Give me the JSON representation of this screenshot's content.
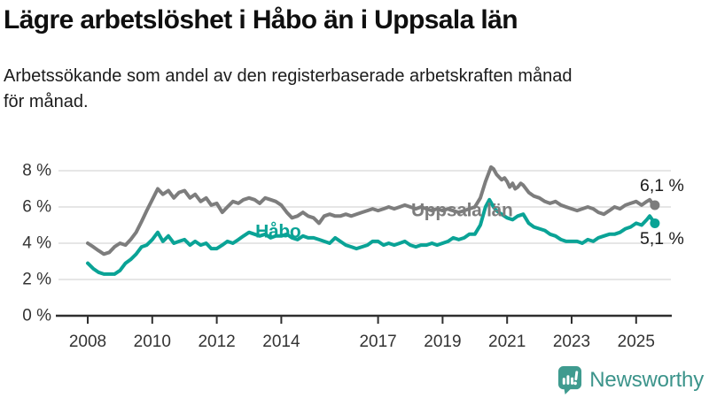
{
  "title": "Lägre arbetslöshet i Håbo än i Uppsala län",
  "subtitle_lines": [
    "Arbetssökande som andel av den registerbaserade arbetskraften månad",
    "för månad."
  ],
  "logo": {
    "text": "Newsworthy",
    "icon": "speech-bubble-bar-chart-exclamation",
    "color": "#3f9b8f",
    "text_color": "#3c948b"
  },
  "colors": {
    "uppsala_line": "#7d7d7d",
    "habo_line": "#0aa396",
    "grid": "#d8d8d8",
    "axis": "#2e2e2e",
    "tick_text": "#333333",
    "value_text": "#1a1a1a"
  },
  "chart_data": {
    "type": "line",
    "title": "",
    "xlabel": "",
    "ylabel": "",
    "x_unit": "year (decimal, monthly series)",
    "y_unit": "percent",
    "xlim": [
      2007.0,
      2026.2
    ],
    "ylim": [
      0,
      8.6
    ],
    "grid": "horizontal",
    "legend_position": "inline-labels",
    "y_ticks": [
      {
        "value": 8,
        "label": "8 %"
      },
      {
        "value": 6,
        "label": "6 %"
      },
      {
        "value": 4,
        "label": "4 %"
      },
      {
        "value": 2,
        "label": "2 %"
      },
      {
        "value": 0,
        "label": "0 %"
      }
    ],
    "x_ticks": [
      {
        "value": 2008,
        "label": "2008"
      },
      {
        "value": 2010,
        "label": "2010"
      },
      {
        "value": 2012,
        "label": "2012"
      },
      {
        "value": 2014,
        "label": "2014"
      },
      {
        "value": 2017,
        "label": "2017"
      },
      {
        "value": 2019,
        "label": "2019"
      },
      {
        "value": 2021,
        "label": "2021"
      },
      {
        "value": 2023,
        "label": "2023"
      },
      {
        "value": 2025,
        "label": "2025"
      }
    ],
    "series": [
      {
        "name": "Uppsala län",
        "key": "uppsala-lan",
        "color": "#7d7d7d",
        "end_label": "6,1 %",
        "end_value": 6.1,
        "label_pos": {
          "x": 2019.6,
          "y": 5.8
        },
        "end_label_pos": {
          "x": 2025.8,
          "y": 7.17
        },
        "points": [
          [
            2008.0,
            4.0
          ],
          [
            2008.17,
            3.8
          ],
          [
            2008.33,
            3.6
          ],
          [
            2008.5,
            3.4
          ],
          [
            2008.67,
            3.5
          ],
          [
            2008.83,
            3.8
          ],
          [
            2009.0,
            4.0
          ],
          [
            2009.17,
            3.9
          ],
          [
            2009.33,
            4.2
          ],
          [
            2009.5,
            4.6
          ],
          [
            2009.67,
            5.2
          ],
          [
            2009.83,
            5.8
          ],
          [
            2010.0,
            6.4
          ],
          [
            2010.17,
            7.0
          ],
          [
            2010.33,
            6.7
          ],
          [
            2010.5,
            6.9
          ],
          [
            2010.67,
            6.5
          ],
          [
            2010.83,
            6.8
          ],
          [
            2011.0,
            6.9
          ],
          [
            2011.17,
            6.5
          ],
          [
            2011.33,
            6.7
          ],
          [
            2011.5,
            6.3
          ],
          [
            2011.67,
            6.5
          ],
          [
            2011.83,
            6.1
          ],
          [
            2012.0,
            6.2
          ],
          [
            2012.17,
            5.7
          ],
          [
            2012.33,
            6.0
          ],
          [
            2012.5,
            6.3
          ],
          [
            2012.67,
            6.2
          ],
          [
            2012.83,
            6.4
          ],
          [
            2013.0,
            6.5
          ],
          [
            2013.17,
            6.4
          ],
          [
            2013.33,
            6.2
          ],
          [
            2013.5,
            6.5
          ],
          [
            2013.67,
            6.4
          ],
          [
            2013.83,
            6.3
          ],
          [
            2014.0,
            6.1
          ],
          [
            2014.17,
            5.7
          ],
          [
            2014.33,
            5.4
          ],
          [
            2014.5,
            5.5
          ],
          [
            2014.67,
            5.7
          ],
          [
            2014.83,
            5.5
          ],
          [
            2015.0,
            5.4
          ],
          [
            2015.17,
            5.1
          ],
          [
            2015.33,
            5.5
          ],
          [
            2015.5,
            5.6
          ],
          [
            2015.67,
            5.5
          ],
          [
            2015.83,
            5.5
          ],
          [
            2016.0,
            5.6
          ],
          [
            2016.17,
            5.5
          ],
          [
            2016.33,
            5.6
          ],
          [
            2016.5,
            5.7
          ],
          [
            2016.67,
            5.8
          ],
          [
            2016.83,
            5.9
          ],
          [
            2017.0,
            5.8
          ],
          [
            2017.17,
            5.9
          ],
          [
            2017.33,
            6.0
          ],
          [
            2017.5,
            5.9
          ],
          [
            2017.67,
            6.0
          ],
          [
            2017.83,
            6.1
          ],
          [
            2018.0,
            6.0
          ],
          [
            2018.17,
            5.9
          ],
          [
            2018.33,
            6.0
          ],
          [
            2018.5,
            5.9
          ],
          [
            2018.67,
            5.8
          ],
          [
            2018.83,
            5.9
          ],
          [
            2019.0,
            5.8
          ],
          [
            2019.17,
            5.9
          ],
          [
            2019.33,
            5.8
          ],
          [
            2019.5,
            5.7
          ],
          [
            2019.67,
            5.8
          ],
          [
            2019.83,
            5.9
          ],
          [
            2020.0,
            6.0
          ],
          [
            2020.17,
            6.5
          ],
          [
            2020.33,
            7.4
          ],
          [
            2020.5,
            8.2
          ],
          [
            2020.58,
            8.1
          ],
          [
            2020.67,
            7.8
          ],
          [
            2020.83,
            7.5
          ],
          [
            2020.92,
            7.6
          ],
          [
            2021.0,
            7.4
          ],
          [
            2021.08,
            7.1
          ],
          [
            2021.17,
            7.3
          ],
          [
            2021.25,
            7.0
          ],
          [
            2021.33,
            7.1
          ],
          [
            2021.42,
            7.3
          ],
          [
            2021.5,
            7.2
          ],
          [
            2021.67,
            6.8
          ],
          [
            2021.83,
            6.6
          ],
          [
            2022.0,
            6.5
          ],
          [
            2022.17,
            6.3
          ],
          [
            2022.33,
            6.2
          ],
          [
            2022.5,
            6.3
          ],
          [
            2022.67,
            6.1
          ],
          [
            2022.83,
            6.0
          ],
          [
            2023.0,
            5.9
          ],
          [
            2023.17,
            5.8
          ],
          [
            2023.33,
            5.9
          ],
          [
            2023.5,
            6.0
          ],
          [
            2023.67,
            5.9
          ],
          [
            2023.83,
            5.7
          ],
          [
            2024.0,
            5.6
          ],
          [
            2024.17,
            5.8
          ],
          [
            2024.33,
            6.0
          ],
          [
            2024.5,
            5.9
          ],
          [
            2024.67,
            6.1
          ],
          [
            2024.83,
            6.2
          ],
          [
            2025.0,
            6.3
          ],
          [
            2025.17,
            6.1
          ],
          [
            2025.33,
            6.3
          ],
          [
            2025.42,
            6.4
          ],
          [
            2025.5,
            6.2
          ],
          [
            2025.58,
            6.1
          ]
        ]
      },
      {
        "name": "Håbo",
        "key": "habo",
        "color": "#0aa396",
        "end_label": "5,1 %",
        "end_value": 5.1,
        "label_pos": {
          "x": 2013.9,
          "y": 4.63
        },
        "end_label_pos": {
          "x": 2025.8,
          "y": 4.24
        },
        "points": [
          [
            2008.0,
            2.9
          ],
          [
            2008.17,
            2.6
          ],
          [
            2008.33,
            2.4
          ],
          [
            2008.5,
            2.3
          ],
          [
            2008.67,
            2.3
          ],
          [
            2008.83,
            2.3
          ],
          [
            2009.0,
            2.5
          ],
          [
            2009.17,
            2.9
          ],
          [
            2009.33,
            3.1
          ],
          [
            2009.5,
            3.4
          ],
          [
            2009.67,
            3.8
          ],
          [
            2009.83,
            3.9
          ],
          [
            2010.0,
            4.2
          ],
          [
            2010.17,
            4.6
          ],
          [
            2010.33,
            4.1
          ],
          [
            2010.5,
            4.4
          ],
          [
            2010.67,
            4.0
          ],
          [
            2010.83,
            4.1
          ],
          [
            2011.0,
            4.2
          ],
          [
            2011.17,
            3.9
          ],
          [
            2011.33,
            4.1
          ],
          [
            2011.5,
            3.9
          ],
          [
            2011.67,
            4.0
          ],
          [
            2011.83,
            3.7
          ],
          [
            2012.0,
            3.7
          ],
          [
            2012.17,
            3.9
          ],
          [
            2012.33,
            4.1
          ],
          [
            2012.5,
            4.0
          ],
          [
            2012.67,
            4.2
          ],
          [
            2012.83,
            4.4
          ],
          [
            2013.0,
            4.6
          ],
          [
            2013.17,
            4.5
          ],
          [
            2013.33,
            4.4
          ],
          [
            2013.5,
            4.5
          ],
          [
            2013.67,
            4.3
          ],
          [
            2013.83,
            4.4
          ],
          [
            2014.0,
            4.4
          ],
          [
            2014.17,
            4.5
          ],
          [
            2014.33,
            4.3
          ],
          [
            2014.5,
            4.2
          ],
          [
            2014.67,
            4.4
          ],
          [
            2014.83,
            4.3
          ],
          [
            2015.0,
            4.3
          ],
          [
            2015.17,
            4.2
          ],
          [
            2015.33,
            4.1
          ],
          [
            2015.5,
            4.0
          ],
          [
            2015.67,
            4.3
          ],
          [
            2015.83,
            4.1
          ],
          [
            2016.0,
            3.9
          ],
          [
            2016.17,
            3.8
          ],
          [
            2016.33,
            3.7
          ],
          [
            2016.5,
            3.8
          ],
          [
            2016.67,
            3.9
          ],
          [
            2016.83,
            4.1
          ],
          [
            2017.0,
            4.1
          ],
          [
            2017.17,
            3.9
          ],
          [
            2017.33,
            4.0
          ],
          [
            2017.5,
            3.9
          ],
          [
            2017.67,
            4.0
          ],
          [
            2017.83,
            4.1
          ],
          [
            2018.0,
            3.9
          ],
          [
            2018.17,
            3.8
          ],
          [
            2018.33,
            3.9
          ],
          [
            2018.5,
            3.9
          ],
          [
            2018.67,
            4.0
          ],
          [
            2018.83,
            3.9
          ],
          [
            2019.0,
            4.0
          ],
          [
            2019.17,
            4.1
          ],
          [
            2019.33,
            4.3
          ],
          [
            2019.5,
            4.2
          ],
          [
            2019.67,
            4.3
          ],
          [
            2019.83,
            4.5
          ],
          [
            2020.0,
            4.5
          ],
          [
            2020.17,
            5.0
          ],
          [
            2020.33,
            6.0
          ],
          [
            2020.45,
            6.4
          ],
          [
            2020.58,
            6.0
          ],
          [
            2020.67,
            5.8
          ],
          [
            2020.83,
            5.6
          ],
          [
            2021.0,
            5.4
          ],
          [
            2021.17,
            5.3
          ],
          [
            2021.33,
            5.5
          ],
          [
            2021.5,
            5.6
          ],
          [
            2021.67,
            5.1
          ],
          [
            2021.83,
            4.9
          ],
          [
            2022.0,
            4.8
          ],
          [
            2022.17,
            4.7
          ],
          [
            2022.33,
            4.5
          ],
          [
            2022.5,
            4.4
          ],
          [
            2022.67,
            4.2
          ],
          [
            2022.83,
            4.1
          ],
          [
            2023.0,
            4.1
          ],
          [
            2023.17,
            4.1
          ],
          [
            2023.33,
            4.0
          ],
          [
            2023.5,
            4.2
          ],
          [
            2023.67,
            4.1
          ],
          [
            2023.83,
            4.3
          ],
          [
            2024.0,
            4.4
          ],
          [
            2024.17,
            4.5
          ],
          [
            2024.33,
            4.5
          ],
          [
            2024.5,
            4.6
          ],
          [
            2024.67,
            4.8
          ],
          [
            2024.83,
            4.9
          ],
          [
            2025.0,
            5.1
          ],
          [
            2025.17,
            5.0
          ],
          [
            2025.33,
            5.3
          ],
          [
            2025.42,
            5.5
          ],
          [
            2025.5,
            5.3
          ],
          [
            2025.58,
            5.1
          ]
        ]
      }
    ]
  }
}
